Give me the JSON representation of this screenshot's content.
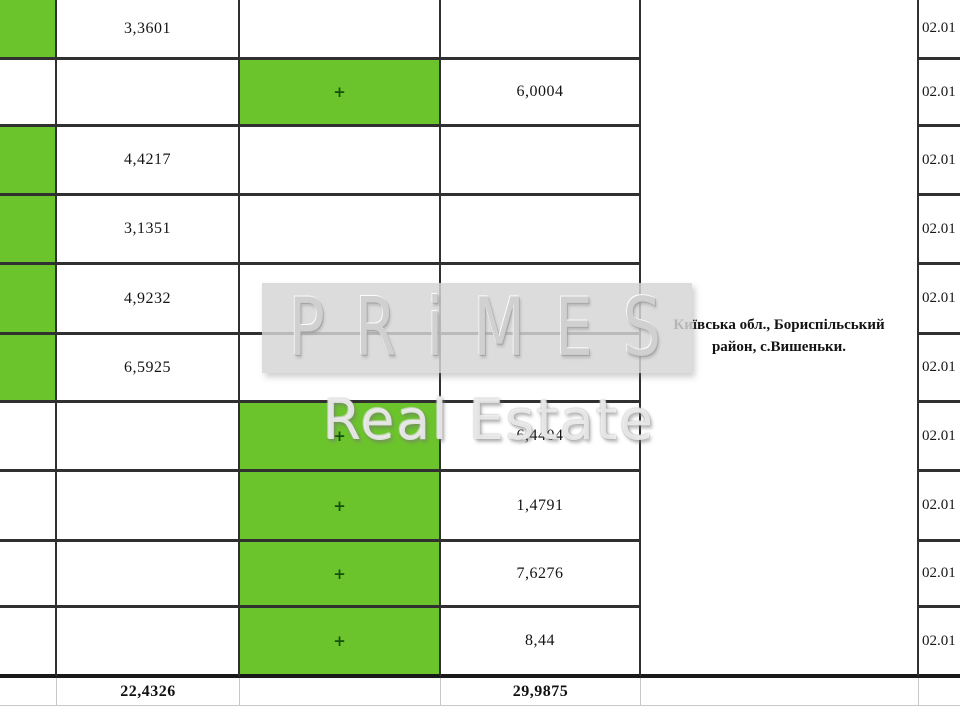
{
  "table": {
    "plus_symbol": "+",
    "rows": [
      {
        "col2": "3,3601",
        "col4": "",
        "col6": "02.01"
      },
      {
        "col2": "",
        "col4": "6,0004",
        "col6": "02.01"
      },
      {
        "col2": "4,4217",
        "col4": "",
        "col6": "02.01"
      },
      {
        "col2": "3,1351",
        "col4": "",
        "col6": "02.01"
      },
      {
        "col2": "4,9232",
        "col4": "",
        "col6": "02.01"
      },
      {
        "col2": "6,5925",
        "col4": "",
        "col6": "02.01"
      },
      {
        "col2": "",
        "col4": "6,4404",
        "col6": "02.01"
      },
      {
        "col2": "",
        "col4": "1,4791",
        "col6": "02.01"
      },
      {
        "col2": "",
        "col4": "7,6276",
        "col6": "02.01"
      },
      {
        "col2": "",
        "col4": "8,44",
        "col6": "02.01"
      }
    ],
    "totals": {
      "col2_total": "22,4326",
      "col4_total": "29,9875"
    },
    "location": {
      "line1": "Київська обл., Бориспільський",
      "line2": "район, с.Вишеньки."
    }
  },
  "watermark": {
    "brand": "PRiMES",
    "subtitle": "Real Estate"
  },
  "colors": {
    "highlight_green": "#6cc42c",
    "grid_dark": "#303030",
    "grid_light": "#c8c8c8"
  }
}
